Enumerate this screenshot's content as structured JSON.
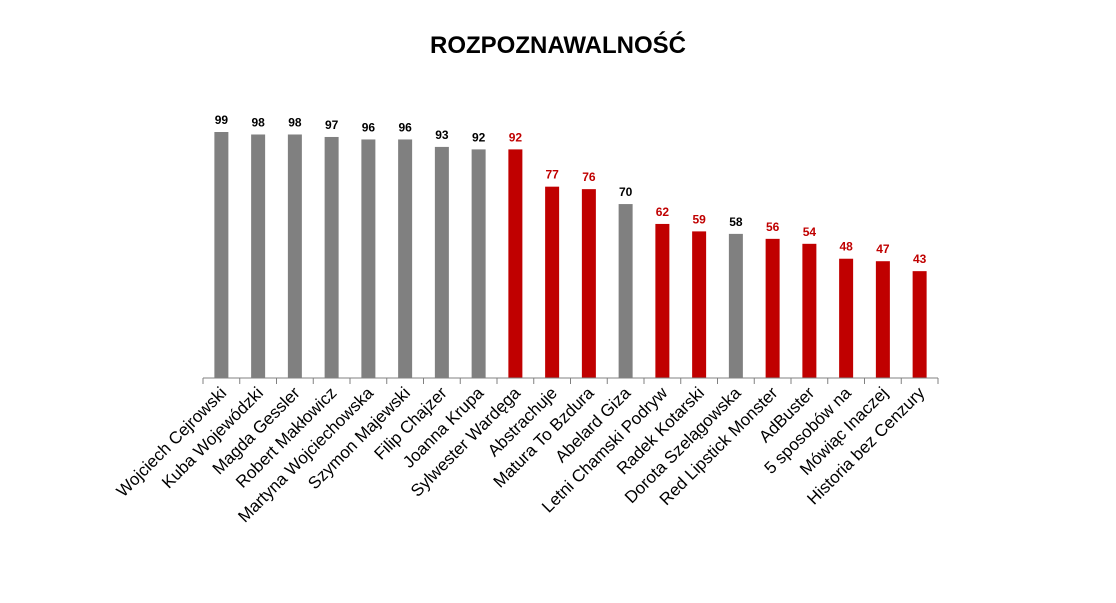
{
  "chart_data": {
    "type": "bar",
    "title": "ROZPOZNAWALNOŚĆ",
    "categories": [
      "Wojciech Cejrowski",
      "Kuba Wojewódzki",
      "Magda Gessler",
      "Robert Makłowicz",
      "Martyna Wojciechowska",
      "Szymon Majewski",
      "Filip Chajzer",
      "Joanna Krupa",
      "Sylwester Wardęga",
      "Abstrachuje",
      "Matura To Bzdura",
      "Abelard Giza",
      "Letni Chamski Podryw",
      "Radek Kotarski",
      "Dorota Szelągowska",
      "Red Lipstick Monster",
      "AdBuster",
      "5 sposobów na",
      "Mówiąc Inaczej",
      "Historia bez Cenzury"
    ],
    "values": [
      99,
      98,
      98,
      97,
      96,
      96,
      93,
      92,
      92,
      77,
      76,
      70,
      62,
      59,
      58,
      56,
      54,
      48,
      47,
      43
    ],
    "groups": [
      "grey",
      "grey",
      "grey",
      "grey",
      "grey",
      "grey",
      "grey",
      "grey",
      "red",
      "red",
      "red",
      "grey",
      "red",
      "red",
      "grey",
      "red",
      "red",
      "red",
      "red",
      "red"
    ],
    "colors": {
      "grey": "#808080",
      "red": "#c00000",
      "grey_label": "#000000",
      "red_label": "#c00000"
    },
    "ylim": [
      0,
      100
    ],
    "xlabel": "",
    "ylabel": "",
    "grid": false,
    "data_labels": true
  }
}
